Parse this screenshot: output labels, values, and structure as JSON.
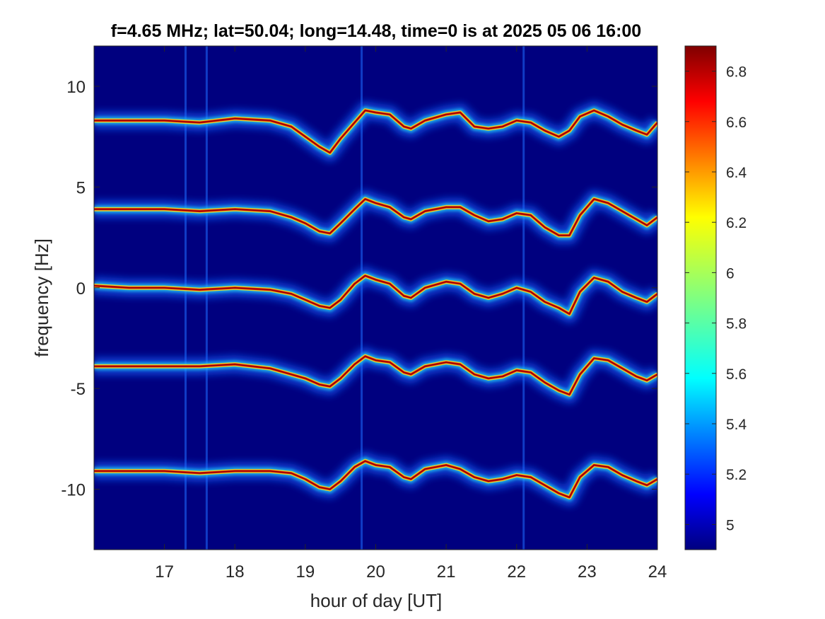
{
  "chart_data": {
    "type": "heatmap",
    "title": "f=4.65 MHz;  lat=50.04; long=14.48, time=0 is at 2025 05 06 16:00",
    "xlabel": "hour of day [UT]",
    "ylabel": "frequency [Hz]",
    "xlim": [
      16,
      24
    ],
    "ylim": [
      -13,
      12
    ],
    "xticks": [
      17,
      18,
      19,
      20,
      21,
      22,
      23,
      24
    ],
    "xtick_labels": [
      "17",
      "18",
      "19",
      "20",
      "21",
      "22",
      "23",
      "24"
    ],
    "yticks": [
      10,
      5,
      0,
      -5,
      -10
    ],
    "ytick_labels": [
      "10",
      "5",
      "0",
      "-5",
      "-10"
    ],
    "colorbar": {
      "range": [
        4.9,
        6.9
      ],
      "ticks": [
        6.8,
        6.6,
        6.4,
        6.2,
        6,
        5.8,
        5.6,
        5.4,
        5.2,
        5
      ],
      "tick_labels": [
        "6.8",
        "6.6",
        "6.4",
        "6.2",
        "6",
        "5.8",
        "5.6",
        "5.4",
        "5.2",
        "5"
      ],
      "colormap": "jet"
    },
    "background_color": "#00007F",
    "grid": false,
    "vertical_streaks_hours": [
      17.3,
      17.6,
      19.8,
      22.1
    ],
    "series": [
      {
        "x": [
          16.0,
          16.5,
          17.0,
          17.5,
          18.0,
          18.5,
          18.8,
          19.0,
          19.2,
          19.35,
          19.5,
          19.7,
          19.85,
          20.0,
          20.2,
          20.4,
          20.5,
          20.7,
          21.0,
          21.2,
          21.4,
          21.6,
          21.8,
          22.0,
          22.2,
          22.4,
          22.6,
          22.75,
          22.9,
          23.1,
          23.3,
          23.5,
          23.7,
          23.85,
          24.0
        ],
        "y": [
          8.3,
          8.3,
          8.3,
          8.2,
          8.4,
          8.3,
          8.0,
          7.5,
          7.0,
          6.7,
          7.4,
          8.2,
          8.8,
          8.7,
          8.6,
          8.0,
          7.9,
          8.3,
          8.6,
          8.7,
          8.0,
          7.9,
          8.0,
          8.3,
          8.2,
          7.8,
          7.5,
          7.8,
          8.5,
          8.8,
          8.5,
          8.1,
          7.8,
          7.6,
          8.2
        ]
      },
      {
        "x": [
          16.0,
          16.5,
          17.0,
          17.5,
          18.0,
          18.5,
          18.8,
          19.0,
          19.2,
          19.35,
          19.5,
          19.7,
          19.85,
          20.0,
          20.2,
          20.4,
          20.5,
          20.7,
          21.0,
          21.2,
          21.4,
          21.6,
          21.8,
          22.0,
          22.2,
          22.4,
          22.6,
          22.75,
          22.9,
          23.1,
          23.3,
          23.5,
          23.7,
          23.85,
          24.0
        ],
        "y": [
          3.9,
          3.9,
          3.9,
          3.8,
          3.9,
          3.8,
          3.5,
          3.2,
          2.8,
          2.7,
          3.2,
          3.9,
          4.4,
          4.2,
          4.0,
          3.5,
          3.4,
          3.8,
          4.0,
          4.0,
          3.6,
          3.3,
          3.4,
          3.7,
          3.6,
          3.0,
          2.6,
          2.6,
          3.6,
          4.4,
          4.2,
          3.8,
          3.4,
          3.1,
          3.5
        ]
      },
      {
        "x": [
          16.0,
          16.5,
          17.0,
          17.5,
          18.0,
          18.5,
          18.8,
          19.0,
          19.2,
          19.35,
          19.5,
          19.7,
          19.85,
          20.0,
          20.2,
          20.4,
          20.5,
          20.7,
          21.0,
          21.2,
          21.4,
          21.6,
          21.8,
          22.0,
          22.2,
          22.4,
          22.6,
          22.75,
          22.9,
          23.1,
          23.3,
          23.5,
          23.7,
          23.85,
          24.0
        ],
        "y": [
          0.1,
          0.0,
          0.0,
          -0.1,
          0.0,
          -0.1,
          -0.3,
          -0.6,
          -0.9,
          -1.0,
          -0.6,
          0.2,
          0.6,
          0.4,
          0.2,
          -0.4,
          -0.5,
          0.0,
          0.3,
          0.2,
          -0.3,
          -0.5,
          -0.3,
          0.0,
          -0.2,
          -0.7,
          -1.0,
          -1.3,
          -0.2,
          0.5,
          0.3,
          -0.2,
          -0.5,
          -0.7,
          -0.3
        ]
      },
      {
        "x": [
          16.0,
          16.5,
          17.0,
          17.5,
          18.0,
          18.5,
          18.8,
          19.0,
          19.2,
          19.35,
          19.5,
          19.7,
          19.85,
          20.0,
          20.2,
          20.4,
          20.5,
          20.7,
          21.0,
          21.2,
          21.4,
          21.6,
          21.8,
          22.0,
          22.2,
          22.4,
          22.6,
          22.75,
          22.9,
          23.1,
          23.3,
          23.5,
          23.7,
          23.85,
          24.0
        ],
        "y": [
          -3.9,
          -3.9,
          -3.9,
          -3.9,
          -3.8,
          -4.0,
          -4.3,
          -4.5,
          -4.8,
          -4.9,
          -4.5,
          -3.8,
          -3.4,
          -3.6,
          -3.7,
          -4.2,
          -4.3,
          -3.9,
          -3.7,
          -3.8,
          -4.3,
          -4.5,
          -4.4,
          -4.1,
          -4.2,
          -4.7,
          -5.1,
          -5.3,
          -4.3,
          -3.5,
          -3.6,
          -4.0,
          -4.4,
          -4.6,
          -4.3
        ]
      },
      {
        "x": [
          16.0,
          16.5,
          17.0,
          17.5,
          18.0,
          18.5,
          18.8,
          19.0,
          19.2,
          19.35,
          19.5,
          19.7,
          19.85,
          20.0,
          20.2,
          20.4,
          20.5,
          20.7,
          21.0,
          21.2,
          21.4,
          21.6,
          21.8,
          22.0,
          22.2,
          22.4,
          22.6,
          22.75,
          22.9,
          23.1,
          23.3,
          23.5,
          23.7,
          23.85,
          24.0
        ],
        "y": [
          -9.1,
          -9.1,
          -9.1,
          -9.2,
          -9.1,
          -9.1,
          -9.2,
          -9.5,
          -9.9,
          -10.0,
          -9.6,
          -8.9,
          -8.6,
          -8.8,
          -8.9,
          -9.4,
          -9.5,
          -9.0,
          -8.8,
          -9.0,
          -9.4,
          -9.6,
          -9.5,
          -9.3,
          -9.4,
          -9.8,
          -10.2,
          -10.4,
          -9.4,
          -8.8,
          -8.9,
          -9.3,
          -9.6,
          -9.8,
          -9.5
        ]
      }
    ]
  }
}
